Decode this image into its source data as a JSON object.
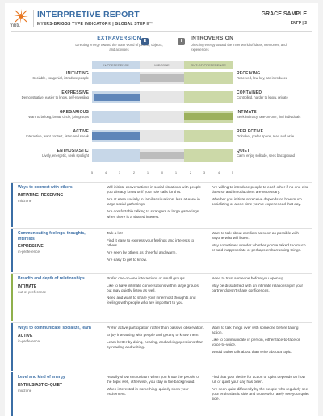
{
  "header": {
    "logo_text": "mbti.",
    "title": "INTERPRETIVE REPORT",
    "subtitle": "MYERS-BRIGGS TYPE INDICATOR®  |  GLOBAL STEP II™",
    "name": "GRACE SAMPLE",
    "type_page": "ENFP  |  3"
  },
  "poles": {
    "left_title": "EXTRAVERSION",
    "left_badge": "E",
    "left_desc": "Directing energy toward the outer world of people, objects, and activities",
    "right_title": "INTROVERSION",
    "right_badge": "I",
    "right_desc": "Directing energy toward the inner world of ideas, memories, and experiences"
  },
  "scale": {
    "left_label": "IN-PREFERENCE",
    "mid_label": "MIDZONE",
    "right_label": "OUT-OF-PREFERENCE",
    "numbers": [
      "5",
      "4",
      "3",
      "2",
      "1",
      "0",
      "1",
      "2",
      "3",
      "4",
      "5"
    ]
  },
  "facets": [
    {
      "lname": "INITIATING",
      "ldesc": "Sociable, congenial, introduce people",
      "rname": "RECEIVING",
      "rdesc": "Reserved, low-key, are introduced",
      "fill": "gray"
    },
    {
      "lname": "EXPRESSIVE",
      "ldesc": "Demonstrative, easier to know, self-revealing",
      "rname": "CONTAINED",
      "rdesc": "Controlled, harder to know, private",
      "fill": "blue"
    },
    {
      "lname": "GREGARIOUS",
      "ldesc": "Want to belong, broad circle, join groups",
      "rname": "INTIMATE",
      "rdesc": "Seek intimacy, one-on-one, find individuals",
      "fill": "green"
    },
    {
      "lname": "ACTIVE",
      "ldesc": "Interactive, want contact, listen and speak",
      "rname": "REFLECTIVE",
      "rdesc": "Onlooker, prefer space, read and write",
      "fill": "blue"
    },
    {
      "lname": "ENTHUSIASTIC",
      "ldesc": "Lively, energetic, seek spotlight",
      "rname": "QUIET",
      "rdesc": "Calm, enjoy solitude, seek background",
      "fill": "gray"
    }
  ],
  "rows": [
    {
      "title": "Ways to connect with others",
      "facet": "INITIATING–RECEIVING",
      "level": "midzone",
      "left": [
        "Will initiate conversations in social situations with people you already know or if your role calls for this.",
        "Are at ease socially in familiar situations, less at ease in large social gatherings.",
        "Are comfortable talking to strangers at large gatherings when there is a shared interest."
      ],
      "right": [
        "Are willing to introduce people to each other if no one else does so and introductions are necessary.",
        "Whether you initiate or receive depends on how much socializing or alone-time you've experienced that day."
      ]
    },
    {
      "title": "Communicating feelings, thoughts, interests",
      "facet": "EXPRESSIVE",
      "level": "in-preference",
      "left": [
        "Talk a lot!",
        "Find it easy to express your feelings and interests to others.",
        "Are seen by others as cheerful and warm.",
        "Are easy to get to know."
      ],
      "right": [
        "Want to talk about conflicts as soon as possible with anyone who will listen.",
        "May sometimes wonder whether you've talked too much or said inappropriate or perhaps embarrassing things."
      ]
    },
    {
      "title": "Breadth and depth of relationships",
      "facet": "INTIMATE",
      "level": "out-of-preference",
      "left": [
        "Prefer one-on-one interactions or small groups.",
        "Like to have intimate conversations within large groups, but may quietly listen as well.",
        "Need and want to share your innermost thoughts and feelings with people who are important to you."
      ],
      "right": [
        "Need to trust someone before you open up.",
        "May be dissatisfied with an intimate relationship if your partner doesn't share confidences."
      ]
    },
    {
      "title": "Ways to communicate, socialize, learn",
      "facet": "ACTIVE",
      "level": "in-preference",
      "left": [
        "Prefer active participation rather than passive observation.",
        "Enjoy interacting with people and getting to know them.",
        "Learn better by doing, hearing, and asking questions than by reading and writing."
      ],
      "right": [
        "Want to talk things over with someone before taking action.",
        "Like to communicate in person, either face-to-face or voice-to-voice.",
        "Would rather talk about than write about a topic."
      ]
    },
    {
      "title": "Level and kind of energy",
      "facet": "ENTHUSIASTIC–QUIET",
      "level": "midzone",
      "left": [
        "Readily show enthusiasm when you know the people or the topic well, otherwise, you stay in the background.",
        "When interested in something, quickly show your excitement."
      ],
      "right": [
        "Find that your desire for action or quiet depends on how full or quiet your day has been.",
        "Are seen quite differently by the people who regularly see your enthusiastic side and those who rarely see your quiet side."
      ]
    }
  ]
}
